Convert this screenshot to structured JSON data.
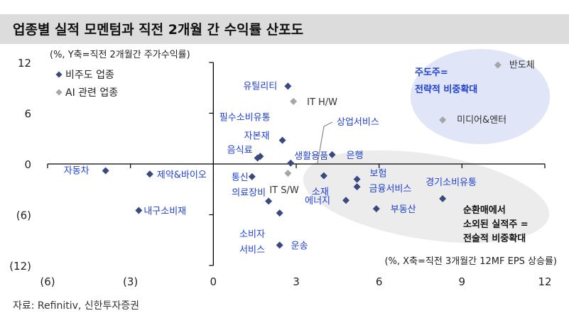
{
  "title": "업종별 실적 모멘텀과 직전 2개월 간 수익률 산포도",
  "source": "자료: Refinitiv, 신한투자증권",
  "chart_data": {
    "type": "scatter",
    "ylabel": "(%, Y축=직전 2개월간 주가수익률)",
    "xlabel": "(%, X축=직전 3개월간 12MF EPS 상승률)",
    "xlim": [
      -6,
      12
    ],
    "ylim": [
      -12,
      12
    ],
    "x_ticks": [
      -6,
      -3,
      0,
      3,
      6,
      9,
      12
    ],
    "x_tick_labels": [
      "(6)",
      "(3)",
      "0",
      "3",
      "6",
      "9",
      "12"
    ],
    "y_ticks": [
      12,
      6,
      0,
      -6,
      -12
    ],
    "y_tick_labels": [
      "12",
      "6",
      "0",
      "(6)",
      "(12)"
    ],
    "legend": [
      {
        "name": "비주도 업종",
        "color": "#3b4a7e",
        "marker": "◆"
      },
      {
        "name": "AI 관련 업종",
        "color": "#a6a6a6",
        "marker": "◆"
      }
    ],
    "series": [
      {
        "name": "비주도 업종",
        "color": "#3b4a7e",
        "points": [
          {
            "label": "유틸리티",
            "x": 2.7,
            "y": 9.2
          },
          {
            "label": "필수소비유통",
            "x": 2.5,
            "y": 2.8
          },
          {
            "label": "자본재",
            "x": 1.7,
            "y": 0.9
          },
          {
            "label": "음식료",
            "x": 1.6,
            "y": 0.7
          },
          {
            "label": "생활용품",
            "x": 2.8,
            "y": 0.1
          },
          {
            "label": "은행",
            "x": 4.3,
            "y": 1.1
          },
          {
            "label": "자동차",
            "x": -3.9,
            "y": -0.8
          },
          {
            "label": "제약&바이오",
            "x": -2.3,
            "y": -1.2
          },
          {
            "label": "통신",
            "x": 1.4,
            "y": -1.5
          },
          {
            "label": "소재",
            "x": 4.0,
            "y": -1.4
          },
          {
            "label": "보험",
            "x": 5.2,
            "y": -1.8
          },
          {
            "label": "금융서비스",
            "x": 5.2,
            "y": -2.7
          },
          {
            "label": "경기소비유통",
            "x": 8.3,
            "y": -4.1
          },
          {
            "label": "에너지",
            "x": 4.8,
            "y": -4.3
          },
          {
            "label": "부동산",
            "x": 5.9,
            "y": -5.3
          },
          {
            "label": "의료장비",
            "x": 2.0,
            "y": -4.4
          },
          {
            "label": "내구소비재",
            "x": -2.7,
            "y": -5.5
          },
          {
            "label": "소비자 서비스",
            "x": 2.4,
            "y": -5.8
          },
          {
            "label": "운송",
            "x": 2.4,
            "y": -9.6
          }
        ]
      },
      {
        "name": "AI 관련 업종",
        "color": "#a6a6a6",
        "points": [
          {
            "label": "반도체",
            "x": 10.3,
            "y": 11.7
          },
          {
            "label": "IT H/W",
            "x": 2.9,
            "y": 7.4
          },
          {
            "label": "미디어&엔터",
            "x": 8.3,
            "y": 5.2
          },
          {
            "label": "IT S/W",
            "x": 2.7,
            "y": -1.1
          }
        ]
      }
    ],
    "annotations": [
      {
        "text_lines": [
          "주도주=",
          "전략적 비중확대"
        ],
        "color": "#1f3fd4"
      },
      {
        "text_lines": [
          "순환매에서",
          "소외된 실적주 =",
          "전술적 비중확대"
        ],
        "color": "#111111"
      },
      {
        "text_lines": [
          "상업서비스"
        ],
        "color": "#1f3fd4"
      }
    ],
    "grid": false
  }
}
